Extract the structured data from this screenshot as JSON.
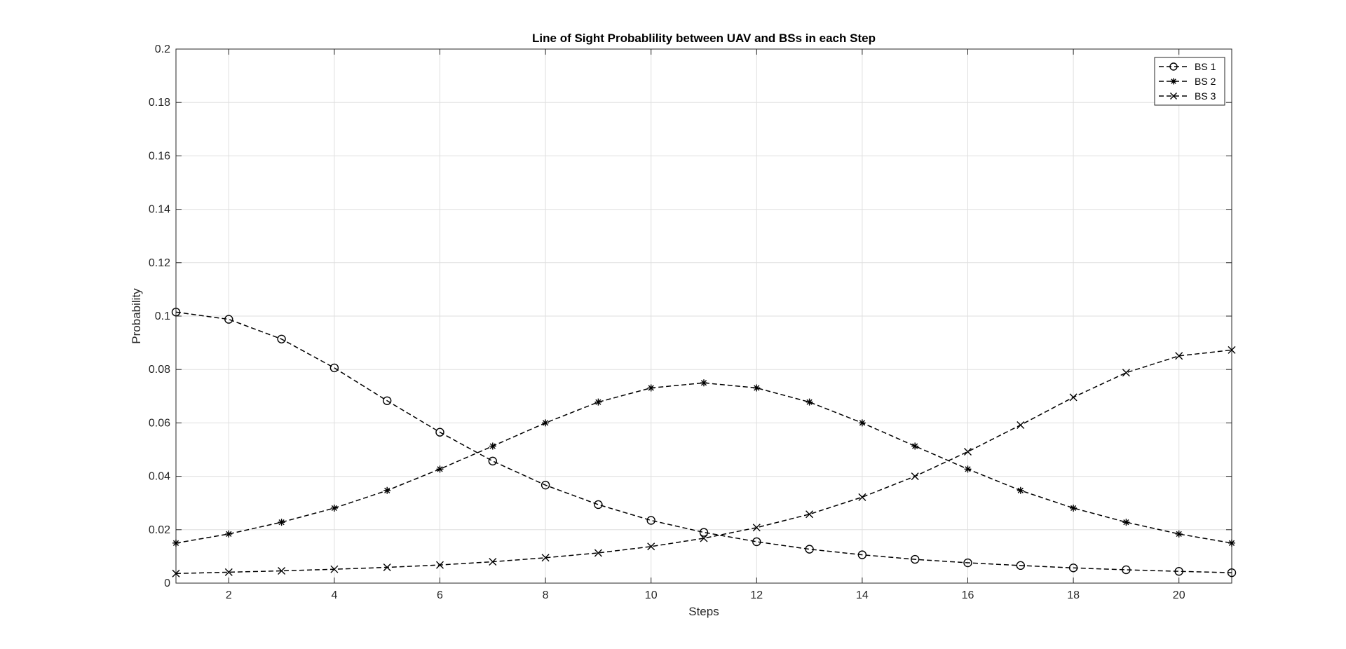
{
  "chart_data": {
    "type": "line",
    "title": "Line of Sight Probablility between UAV and BSs in each Step",
    "xlabel": "Steps",
    "ylabel": "Probability",
    "xlim": [
      1,
      21
    ],
    "ylim": [
      0,
      0.2
    ],
    "x_ticks": [
      2,
      4,
      6,
      8,
      10,
      12,
      14,
      16,
      18,
      20
    ],
    "y_ticks": [
      0,
      0.02,
      0.04,
      0.06,
      0.08,
      0.1,
      0.12,
      0.14,
      0.16,
      0.18,
      0.2
    ],
    "x_tick_labels": [
      "2",
      "4",
      "6",
      "8",
      "10",
      "12",
      "14",
      "16",
      "18",
      "20"
    ],
    "y_tick_labels": [
      "0",
      "0.02",
      "0.04",
      "0.06",
      "0.08",
      "0.1",
      "0.12",
      "0.14",
      "0.16",
      "0.18",
      "0.2"
    ],
    "grid": true,
    "legend_position": "top-right",
    "line_style": "dashed",
    "line_color": "#000000",
    "x": [
      1,
      2,
      3,
      4,
      5,
      6,
      7,
      8,
      9,
      10,
      11,
      12,
      13,
      14,
      15,
      16,
      17,
      18,
      19,
      20,
      21
    ],
    "series": [
      {
        "name": "BS 1",
        "marker": "circle",
        "values": [
          0.1015,
          0.0988,
          0.0914,
          0.0806,
          0.0683,
          0.0565,
          0.0457,
          0.0367,
          0.0294,
          0.0235,
          0.019,
          0.0155,
          0.0127,
          0.0106,
          0.0089,
          0.0076,
          0.0066,
          0.0057,
          0.005,
          0.0044,
          0.0039
        ]
      },
      {
        "name": "BS 2",
        "marker": "asterisk",
        "values": [
          0.015,
          0.0184,
          0.0228,
          0.0281,
          0.0347,
          0.0427,
          0.0513,
          0.06,
          0.0678,
          0.0731,
          0.075,
          0.0731,
          0.0678,
          0.06,
          0.0513,
          0.0427,
          0.0347,
          0.0281,
          0.0228,
          0.0184,
          0.015
        ]
      },
      {
        "name": "BS 3",
        "marker": "x",
        "values": [
          0.0036,
          0.0041,
          0.0046,
          0.0052,
          0.0059,
          0.0068,
          0.008,
          0.0095,
          0.0113,
          0.0137,
          0.0168,
          0.0208,
          0.0258,
          0.0322,
          0.04,
          0.0492,
          0.0592,
          0.0696,
          0.0788,
          0.0851,
          0.0873
        ]
      }
    ]
  }
}
